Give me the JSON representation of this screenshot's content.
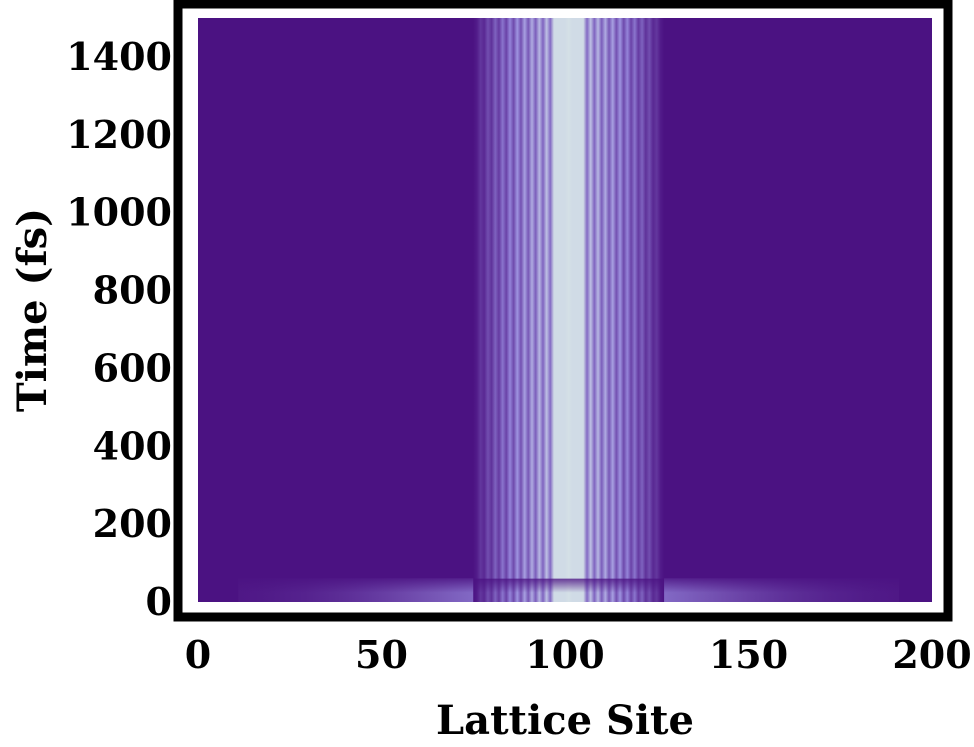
{
  "chart_data": {
    "type": "heatmap",
    "title": "",
    "xlabel": "Lattice Site",
    "ylabel": "Time (fs)",
    "xlim": [
      0,
      200
    ],
    "ylim": [
      0,
      1500
    ],
    "x_ticks": [
      0,
      50,
      100,
      150,
      200
    ],
    "y_ticks": [
      0,
      200,
      400,
      600,
      800,
      1000,
      1200,
      1400
    ],
    "grid": false,
    "legend": "none",
    "colors": {
      "low": "#4b1282",
      "mid": "#9a8ee0",
      "high": "#d4e0e6",
      "frame": "#000000"
    },
    "description_of_field": {
      "lattice_sites": 200,
      "center_site": 101,
      "stripe_half_width_sites": 26,
      "initial_spread_half_width_sites": 90,
      "initial_transient_end_fs": 60
    }
  }
}
